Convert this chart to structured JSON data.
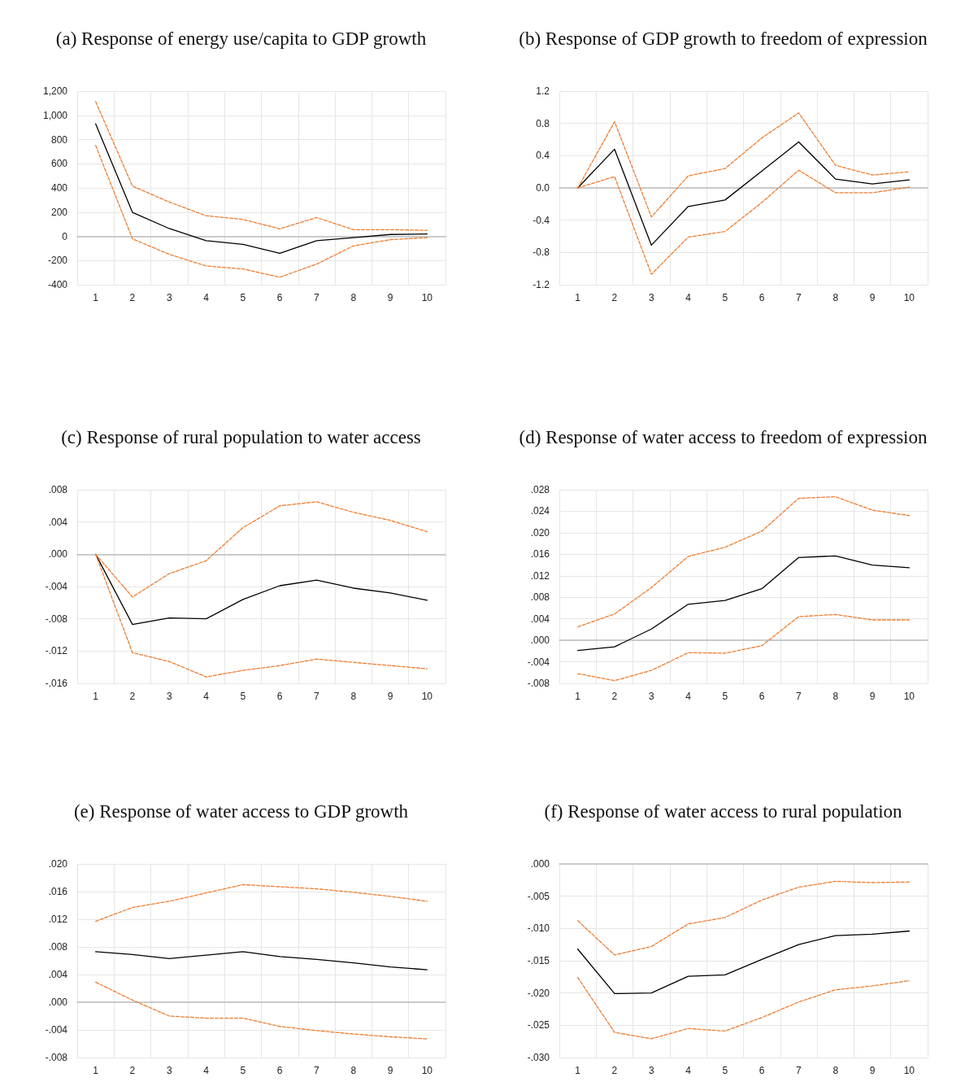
{
  "chart_data": [
    {
      "type": "line",
      "title": "(a) Response of energy use/capita to GDP growth",
      "categories": [
        "1",
        "2",
        "3",
        "4",
        "5",
        "6",
        "7",
        "8",
        "9",
        "10"
      ],
      "series": [
        {
          "color": "#000000",
          "line_style": "solid",
          "values": [
            930,
            198,
            64,
            -36,
            -66,
            -140,
            -36,
            -11,
            15,
            19
          ]
        },
        {
          "color": "#ed7d31",
          "line_style": "dashed",
          "values": [
            1113,
            415,
            283,
            170,
            140,
            62,
            155,
            55,
            55,
            49
          ]
        },
        {
          "color": "#ed7d31",
          "line_style": "dashed",
          "values": [
            751,
            -21,
            -149,
            -245,
            -270,
            -338,
            -230,
            -79,
            -28,
            -11
          ]
        }
      ],
      "ylim": [
        -400,
        1200
      ],
      "yticks": [
        {
          "value": -400,
          "label": "-400"
        },
        {
          "value": -200,
          "label": "-200"
        },
        0,
        200,
        400,
        600,
        800,
        {
          "value": 1000,
          "label": "1,000"
        },
        {
          "value": 1200,
          "label": "1,200"
        }
      ],
      "grid": true,
      "marker": "none"
    },
    {
      "type": "line",
      "title": "(b) Response of GDP growth to freedom of expression",
      "categories": [
        "1",
        "2",
        "3",
        "4",
        "5",
        "6",
        "7",
        "8",
        "9",
        "10"
      ],
      "series": [
        {
          "color": "#000000",
          "line_style": "solid",
          "values": [
            0,
            0.48,
            -0.71,
            -0.23,
            -0.15,
            0.21,
            0.57,
            0.11,
            0.05,
            0.1
          ]
        },
        {
          "color": "#ed7d31",
          "line_style": "dashed",
          "values": [
            0,
            0.82,
            -0.36,
            0.15,
            0.24,
            0.62,
            0.93,
            0.28,
            0.16,
            0.2
          ]
        },
        {
          "color": "#ed7d31",
          "line_style": "dashed",
          "values": [
            0,
            0.14,
            -1.07,
            -0.61,
            -0.54,
            -0.18,
            0.22,
            -0.06,
            -0.06,
            0.01
          ]
        }
      ],
      "ylim": [
        -1.2,
        1.2
      ],
      "yticks": [
        {
          "value": -1.2,
          "label": "-1.2"
        },
        {
          "value": -0.8,
          "label": "-0.8"
        },
        {
          "value": -0.4,
          "label": "-0.4"
        },
        {
          "value": 0,
          "label": "0.0"
        },
        {
          "value": 0.4,
          "label": "0.4"
        },
        {
          "value": 0.8,
          "label": "0.8"
        },
        {
          "value": 1.2,
          "label": "1.2"
        }
      ],
      "grid": true,
      "marker": "none"
    },
    {
      "type": "line",
      "title": "(c) Response of rural population to water access",
      "categories": [
        "1",
        "2",
        "3",
        "4",
        "5",
        "6",
        "7",
        "8",
        "9",
        "10"
      ],
      "series": [
        {
          "color": "#000000",
          "line_style": "solid",
          "values": [
            0,
            -0.0087,
            -0.0079,
            -0.008,
            -0.0056,
            -0.0039,
            -0.0032,
            -0.0042,
            -0.0048,
            -0.0057
          ]
        },
        {
          "color": "#ed7d31",
          "line_style": "dashed",
          "values": [
            0,
            -0.0053,
            -0.0024,
            -0.0008,
            0.0033,
            0.006,
            0.0065,
            0.0052,
            0.0042,
            0.0028
          ]
        },
        {
          "color": "#ed7d31",
          "line_style": "dashed",
          "values": [
            0,
            -0.0122,
            -0.0133,
            -0.0152,
            -0.0144,
            -0.0138,
            -0.013,
            -0.0134,
            -0.0138,
            -0.0142
          ]
        }
      ],
      "ylim": [
        -0.016,
        0.008
      ],
      "yticks": [
        {
          "value": -0.016,
          "label": "-.016"
        },
        {
          "value": -0.012,
          "label": "-.012"
        },
        {
          "value": -0.008,
          "label": "-.008"
        },
        {
          "value": -0.004,
          "label": "-.004"
        },
        {
          "value": 0,
          "label": ".000"
        },
        {
          "value": 0.004,
          "label": ".004"
        },
        {
          "value": 0.008,
          "label": ".008"
        }
      ],
      "grid": true,
      "marker": "none"
    },
    {
      "type": "line",
      "title": "(d) Response of water access to freedom of expression",
      "categories": [
        "1",
        "2",
        "3",
        "4",
        "5",
        "6",
        "7",
        "8",
        "9",
        "10"
      ],
      "series": [
        {
          "color": "#000000",
          "line_style": "solid",
          "values": [
            -0.0019,
            -0.0012,
            0.0021,
            0.0067,
            0.0074,
            0.0096,
            0.0154,
            0.0157,
            0.014,
            0.0135
          ]
        },
        {
          "color": "#ed7d31",
          "line_style": "dashed",
          "values": [
            0.0025,
            0.0049,
            0.0098,
            0.0156,
            0.0173,
            0.0203,
            0.0264,
            0.0267,
            0.0242,
            0.0232
          ]
        },
        {
          "color": "#ed7d31",
          "line_style": "dashed",
          "values": [
            -0.0062,
            -0.0075,
            -0.0056,
            -0.0023,
            -0.0024,
            -0.001,
            0.0044,
            0.0048,
            0.0038,
            0.0038
          ]
        }
      ],
      "ylim": [
        -0.008,
        0.028
      ],
      "yticks": [
        {
          "value": -0.008,
          "label": "-.008"
        },
        {
          "value": -0.004,
          "label": "-.004"
        },
        {
          "value": 0,
          "label": ".000"
        },
        {
          "value": 0.004,
          "label": ".004"
        },
        {
          "value": 0.008,
          "label": ".008"
        },
        {
          "value": 0.012,
          "label": ".012"
        },
        {
          "value": 0.016,
          "label": ".016"
        },
        {
          "value": 0.02,
          "label": ".020"
        },
        {
          "value": 0.024,
          "label": ".024"
        },
        {
          "value": 0.028,
          "label": ".028"
        }
      ],
      "grid": true,
      "marker": "none"
    },
    {
      "type": "line",
      "title": "(e) Response of water access to GDP growth",
      "categories": [
        "1",
        "2",
        "3",
        "4",
        "5",
        "6",
        "7",
        "8",
        "9",
        "10"
      ],
      "series": [
        {
          "color": "#000000",
          "line_style": "solid",
          "values": [
            0.0073,
            0.0069,
            0.0063,
            0.0068,
            0.0073,
            0.0066,
            0.0062,
            0.0057,
            0.0051,
            0.0047
          ]
        },
        {
          "color": "#ed7d31",
          "line_style": "dashed",
          "values": [
            0.0117,
            0.0137,
            0.0146,
            0.0158,
            0.017,
            0.0167,
            0.0164,
            0.0159,
            0.0153,
            0.0146
          ]
        },
        {
          "color": "#ed7d31",
          "line_style": "dashed",
          "values": [
            0.0029,
            0.0003,
            -0.002,
            -0.0023,
            -0.0023,
            -0.0035,
            -0.0041,
            -0.0046,
            -0.005,
            -0.0053
          ]
        }
      ],
      "ylim": [
        -0.008,
        0.02
      ],
      "yticks": [
        {
          "value": -0.008,
          "label": "-.008"
        },
        {
          "value": -0.004,
          "label": "-.004"
        },
        {
          "value": 0,
          "label": ".000"
        },
        {
          "value": 0.004,
          "label": ".004"
        },
        {
          "value": 0.008,
          "label": ".008"
        },
        {
          "value": 0.012,
          "label": ".012"
        },
        {
          "value": 0.016,
          "label": ".016"
        },
        {
          "value": 0.02,
          "label": ".020"
        }
      ],
      "grid": true,
      "marker": "none"
    },
    {
      "type": "line",
      "title": "(f) Response of water access to rural population",
      "categories": [
        "1",
        "2",
        "3",
        "4",
        "5",
        "6",
        "7",
        "8",
        "9",
        "10"
      ],
      "series": [
        {
          "color": "#000000",
          "line_style": "solid",
          "values": [
            -0.0132,
            -0.0201,
            -0.02,
            -0.0174,
            -0.0172,
            -0.0148,
            -0.0125,
            -0.0111,
            -0.0109,
            -0.0104
          ]
        },
        {
          "color": "#ed7d31",
          "line_style": "dashed",
          "values": [
            -0.0088,
            -0.0141,
            -0.0128,
            -0.0093,
            -0.0083,
            -0.0056,
            -0.0036,
            -0.0027,
            -0.0029,
            -0.0028
          ]
        },
        {
          "color": "#ed7d31",
          "line_style": "dashed",
          "values": [
            -0.0176,
            -0.0261,
            -0.0271,
            -0.0255,
            -0.0259,
            -0.0238,
            -0.0214,
            -0.0195,
            -0.0189,
            -0.0181
          ]
        }
      ],
      "ylim": [
        -0.03,
        0
      ],
      "yticks": [
        {
          "value": -0.03,
          "label": "-.030"
        },
        {
          "value": -0.025,
          "label": "-.025"
        },
        {
          "value": -0.02,
          "label": "-.020"
        },
        {
          "value": -0.015,
          "label": "-.015"
        },
        {
          "value": -0.01,
          "label": "-.010"
        },
        {
          "value": -0.005,
          "label": "-.005"
        },
        {
          "value": 0,
          "label": ".000"
        }
      ],
      "grid": true,
      "marker": "none"
    }
  ]
}
